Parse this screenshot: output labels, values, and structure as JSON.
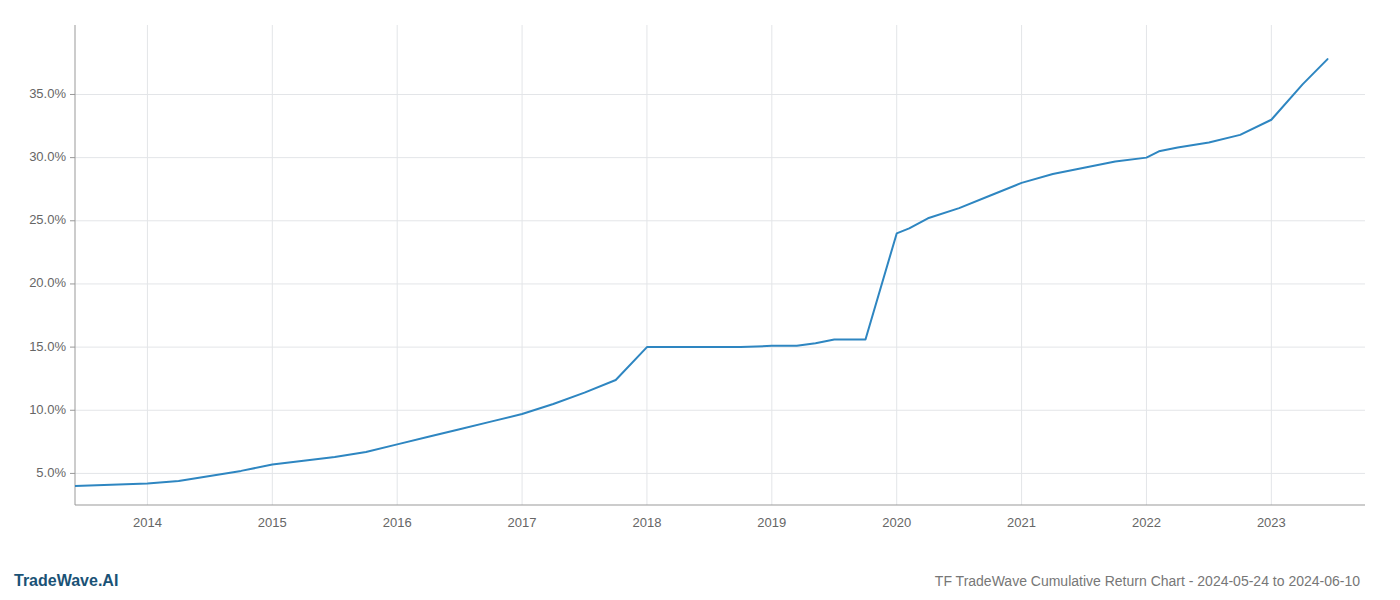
{
  "chart_data": {
    "type": "line",
    "title": "TF TradeWave Cumulative Return Chart - 2024-05-24 to 2024-06-10",
    "annotations": [
      "TradeWave.AI"
    ],
    "color": "#2e86c1",
    "grid": true,
    "x": [
      2013.42,
      2014.0,
      2014.25,
      2014.5,
      2014.75,
      2015.0,
      2015.25,
      2015.5,
      2015.75,
      2016.0,
      2016.25,
      2016.5,
      2016.75,
      2017.0,
      2017.25,
      2017.5,
      2017.75,
      2018.0,
      2018.1,
      2018.25,
      2018.5,
      2018.75,
      2019.0,
      2019.1,
      2019.2,
      2019.35,
      2019.5,
      2019.65,
      2019.75,
      2020.0,
      2020.1,
      2020.25,
      2020.5,
      2020.75,
      2021.0,
      2021.25,
      2021.5,
      2021.65,
      2021.75,
      2022.0,
      2022.1,
      2022.25,
      2022.5,
      2022.75,
      2023.0,
      2023.25,
      2023.45
    ],
    "values": [
      0.04,
      0.042,
      0.044,
      0.048,
      0.052,
      0.057,
      0.06,
      0.063,
      0.067,
      0.073,
      0.079,
      0.085,
      0.091,
      0.097,
      0.105,
      0.114,
      0.124,
      0.15,
      0.15,
      0.15,
      0.15,
      0.15,
      0.151,
      0.151,
      0.151,
      0.153,
      0.156,
      0.156,
      0.156,
      0.24,
      0.244,
      0.252,
      0.26,
      0.27,
      0.28,
      0.287,
      0.292,
      0.295,
      0.297,
      0.3,
      0.305,
      0.308,
      0.312,
      0.318,
      0.33,
      0.358,
      0.378
    ],
    "xlim": [
      2013.42,
      2023.75
    ],
    "xticks": [
      2014,
      2015,
      2016,
      2017,
      2018,
      2019,
      2020,
      2021,
      2022,
      2023
    ],
    "ylim": [
      0.025,
      0.405
    ],
    "yticks": [
      {
        "value": 0.05,
        "label": "5.0%"
      },
      {
        "value": 0.1,
        "label": "10.0%"
      },
      {
        "value": 0.15,
        "label": "15.0%"
      },
      {
        "value": 0.2,
        "label": "20.0%"
      },
      {
        "value": 0.25,
        "label": "25.0%"
      },
      {
        "value": 0.3,
        "label": "30.0%"
      },
      {
        "value": 0.35,
        "label": "35.0%"
      }
    ]
  }
}
